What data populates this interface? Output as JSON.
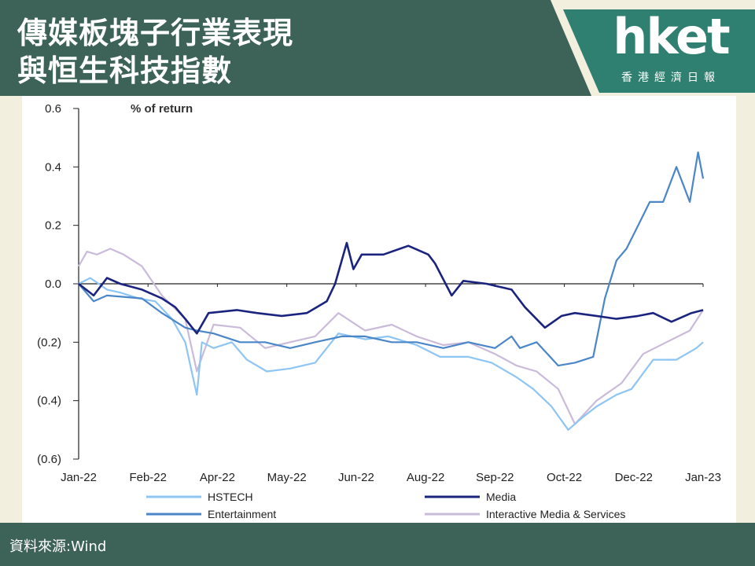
{
  "header": {
    "title_line1": "傳媒板塊子行業表現",
    "title_line2": "與恒生科技指數"
  },
  "logo": {
    "wordmark": "hket",
    "subtitle": "香港經濟日報"
  },
  "footer": {
    "source": "資料來源:Wind"
  },
  "colors": {
    "header_bg": "#3d6358",
    "logo_panel": "#2f8070",
    "page_bg": "#f3efdf",
    "HSTECH": "#8ec5f2",
    "Media": "#1a237e",
    "Entertainment": "#4a86c8",
    "Interactive Media & Services": "#c9bbd9"
  },
  "chart_data": {
    "type": "line",
    "ylabel": "% of return",
    "ylim": [
      -0.6,
      0.6
    ],
    "y_ticks": [
      0.6,
      0.4,
      0.2,
      0.0,
      -0.2,
      -0.4,
      -0.6
    ],
    "y_tick_labels": [
      "0.6",
      "0.4",
      "0.2",
      "0.0",
      "(0.2)",
      "(0.4)",
      "(0.6)"
    ],
    "x_tick_labels": [
      "Jan-22",
      "Feb-22",
      "Apr-22",
      "May-22",
      "Jun-22",
      "Aug-22",
      "Sep-22",
      "Oct-22",
      "Dec-22",
      "Jan-23"
    ],
    "grid": false,
    "legend_position": "bottom",
    "series": [
      {
        "name": "HSTECH",
        "x": [
          "2022-01-03",
          "2022-01-10",
          "2022-01-20",
          "2022-01-28",
          "2022-02-08",
          "2022-02-18",
          "2022-02-28",
          "2022-03-08",
          "2022-03-15",
          "2022-03-18",
          "2022-03-25",
          "2022-04-05",
          "2022-04-14",
          "2022-04-26",
          "2022-05-10",
          "2022-05-25",
          "2022-06-08",
          "2022-06-24",
          "2022-07-08",
          "2022-07-25",
          "2022-08-08",
          "2022-08-25",
          "2022-09-08",
          "2022-09-23",
          "2022-10-03",
          "2022-10-14",
          "2022-10-24",
          "2022-11-01",
          "2022-11-10",
          "2022-11-22",
          "2022-12-01",
          "2022-12-14",
          "2022-12-28",
          "2023-01-09",
          "2023-01-13"
        ],
        "y": [
          0.0,
          0.02,
          -0.02,
          -0.03,
          -0.05,
          -0.06,
          -0.12,
          -0.2,
          -0.38,
          -0.2,
          -0.22,
          -0.2,
          -0.26,
          -0.3,
          -0.29,
          -0.27,
          -0.17,
          -0.19,
          -0.18,
          -0.21,
          -0.25,
          -0.25,
          -0.27,
          -0.32,
          -0.36,
          -0.42,
          -0.5,
          -0.46,
          -0.42,
          -0.38,
          -0.36,
          -0.26,
          -0.26,
          -0.22,
          -0.2
        ]
      },
      {
        "name": "Media",
        "x": [
          "2022-01-03",
          "2022-01-12",
          "2022-01-20",
          "2022-01-28",
          "2022-02-10",
          "2022-02-22",
          "2022-03-02",
          "2022-03-08",
          "2022-03-15",
          "2022-03-22",
          "2022-04-08",
          "2022-04-20",
          "2022-05-05",
          "2022-05-20",
          "2022-06-01",
          "2022-06-06",
          "2022-06-13",
          "2022-06-17",
          "2022-06-22",
          "2022-07-05",
          "2022-07-20",
          "2022-08-01",
          "2022-08-05",
          "2022-08-15",
          "2022-08-22",
          "2022-09-05",
          "2022-09-20",
          "2022-09-28",
          "2022-10-10",
          "2022-10-20",
          "2022-10-28",
          "2022-11-10",
          "2022-11-22",
          "2022-12-05",
          "2022-12-14",
          "2022-12-25",
          "2023-01-06",
          "2023-01-13"
        ],
        "y": [
          0.0,
          -0.04,
          0.02,
          0.0,
          -0.02,
          -0.05,
          -0.08,
          -0.12,
          -0.17,
          -0.1,
          -0.09,
          -0.1,
          -0.11,
          -0.1,
          -0.06,
          0.0,
          0.14,
          0.05,
          0.1,
          0.1,
          0.13,
          0.1,
          0.07,
          -0.04,
          0.01,
          0.0,
          -0.02,
          -0.08,
          -0.15,
          -0.11,
          -0.1,
          -0.11,
          -0.12,
          -0.11,
          -0.1,
          -0.13,
          -0.1,
          -0.09
        ]
      },
      {
        "name": "Entertainment",
        "x": [
          "2022-01-03",
          "2022-01-12",
          "2022-01-20",
          "2022-02-10",
          "2022-02-22",
          "2022-03-08",
          "2022-03-15",
          "2022-03-25",
          "2022-04-10",
          "2022-04-25",
          "2022-05-10",
          "2022-05-25",
          "2022-06-10",
          "2022-06-24",
          "2022-07-10",
          "2022-07-25",
          "2022-08-10",
          "2022-08-25",
          "2022-09-10",
          "2022-09-20",
          "2022-09-25",
          "2022-10-05",
          "2022-10-18",
          "2022-10-28",
          "2022-11-08",
          "2022-11-15",
          "2022-11-22",
          "2022-11-28",
          "2022-12-05",
          "2022-12-12",
          "2022-12-20",
          "2022-12-28",
          "2023-01-05",
          "2023-01-10",
          "2023-01-13"
        ],
        "y": [
          0.0,
          -0.06,
          -0.04,
          -0.05,
          -0.1,
          -0.15,
          -0.16,
          -0.17,
          -0.2,
          -0.2,
          -0.22,
          -0.2,
          -0.18,
          -0.18,
          -0.2,
          -0.2,
          -0.22,
          -0.2,
          -0.22,
          -0.18,
          -0.22,
          -0.2,
          -0.28,
          -0.27,
          -0.25,
          -0.05,
          0.08,
          0.12,
          0.2,
          0.28,
          0.28,
          0.4,
          0.28,
          0.45,
          0.36
        ]
      },
      {
        "name": "Interactive Media & Services",
        "x": [
          "2022-01-03",
          "2022-01-08",
          "2022-01-14",
          "2022-01-22",
          "2022-01-30",
          "2022-02-10",
          "2022-02-22",
          "2022-03-08",
          "2022-03-15",
          "2022-03-25",
          "2022-04-10",
          "2022-04-25",
          "2022-05-10",
          "2022-05-25",
          "2022-06-08",
          "2022-06-24",
          "2022-07-10",
          "2022-07-25",
          "2022-08-10",
          "2022-08-25",
          "2022-09-10",
          "2022-09-23",
          "2022-10-05",
          "2022-10-18",
          "2022-10-28",
          "2022-11-10",
          "2022-11-25",
          "2022-12-08",
          "2022-12-22",
          "2023-01-05",
          "2023-01-13"
        ],
        "y": [
          0.06,
          0.11,
          0.1,
          0.12,
          0.1,
          0.06,
          -0.04,
          -0.12,
          -0.3,
          -0.14,
          -0.15,
          -0.22,
          -0.2,
          -0.18,
          -0.1,
          -0.16,
          -0.14,
          -0.18,
          -0.21,
          -0.2,
          -0.24,
          -0.28,
          -0.3,
          -0.36,
          -0.48,
          -0.4,
          -0.34,
          -0.24,
          -0.2,
          -0.16,
          -0.09
        ]
      }
    ]
  }
}
